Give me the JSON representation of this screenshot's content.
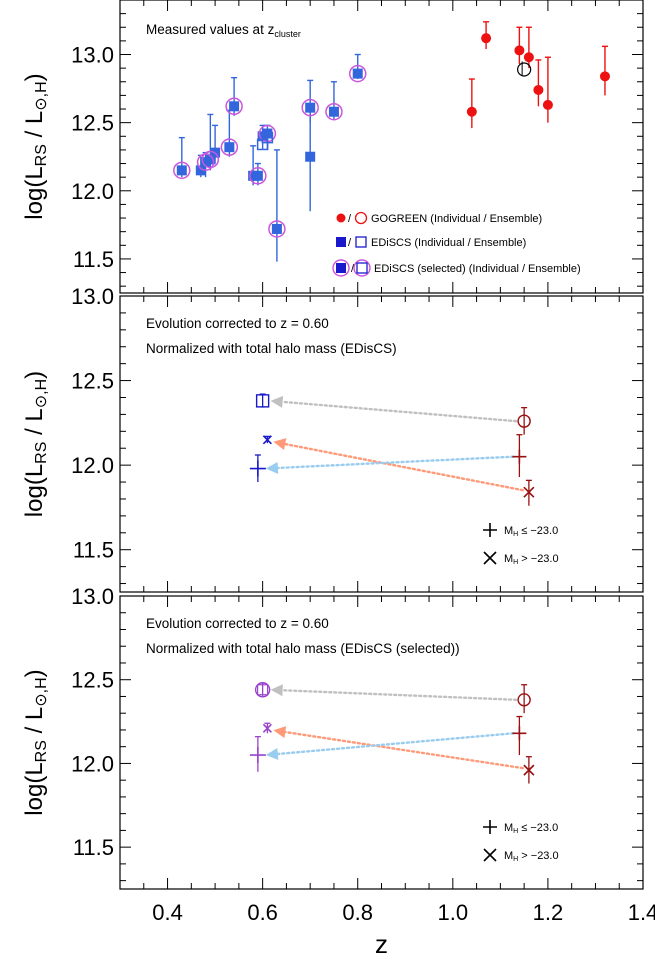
{
  "figure": {
    "x_axis": {
      "label": "z",
      "range": [
        0.3,
        1.4
      ],
      "ticks": [
        0.4,
        0.6,
        0.8,
        1.0,
        1.2,
        1.4
      ],
      "tick_labels": [
        "0.4",
        "0.6",
        "0.8",
        "1.0",
        "1.2",
        "1.4"
      ]
    },
    "y_axis_label": {
      "prefix": "log(L",
      "sub1": "RS",
      "mid": " / L",
      "sub2": "⊙,H",
      "suffix": ")"
    }
  },
  "colors": {
    "gogreen": "#ee1111",
    "ediscs": "#3366dd",
    "selected_ring": "#cc55dd",
    "dark_red": "#991111",
    "blue_marker": "#1a1acc",
    "violet_marker": "#9944cc",
    "arrow_gray": "#c0c0c0",
    "arrow_orange": "#ff9977",
    "arrow_blue": "#99ccee"
  },
  "chart_data": [
    {
      "type": "scatter",
      "panel": "top",
      "annotation": {
        "text": "Measured values at z",
        "sub": "cluster"
      },
      "ylim": [
        11.25,
        13.4
      ],
      "yticks": [
        11.5,
        12.0,
        12.5,
        13.0
      ],
      "ytick_labels": [
        "11.5",
        "12.0",
        "12.5",
        "13.0"
      ],
      "legend": [
        {
          "text": "GOGREEN (Individual / Ensemble)",
          "sep": "/"
        },
        {
          "text": "EDiSCS (Individual / Ensemble)",
          "sep": "/"
        },
        {
          "text": "EDiSCS (selected) (Individual / Ensemble)",
          "sep": "/"
        }
      ],
      "series": [
        {
          "name": "GOGREEN (Individual / Ensemble)",
          "individual": [
            {
              "x": 1.04,
              "y": 12.58,
              "lo": 12.46,
              "hi": 12.82
            },
            {
              "x": 1.07,
              "y": 13.12,
              "lo": 13.04,
              "hi": 13.24
            },
            {
              "x": 1.14,
              "y": 13.03,
              "lo": 12.93,
              "hi": 13.2
            },
            {
              "x": 1.16,
              "y": 12.98,
              "lo": 12.9,
              "hi": 13.2
            },
            {
              "x": 1.18,
              "y": 12.74,
              "lo": 12.62,
              "hi": 12.96
            },
            {
              "x": 1.2,
              "y": 12.63,
              "lo": 12.5,
              "hi": 12.98
            },
            {
              "x": 1.32,
              "y": 12.84,
              "lo": 12.7,
              "hi": 13.06
            }
          ],
          "ensemble": {
            "x": 1.15,
            "y": 12.89
          }
        },
        {
          "name": "EDiSCS (Individual / Ensemble)",
          "individual": [
            {
              "x": 0.43,
              "y": 12.15,
              "lo": 12.1,
              "hi": 12.39
            },
            {
              "x": 0.47,
              "y": 12.15,
              "lo": 12.1,
              "hi": 12.26
            },
            {
              "x": 0.48,
              "y": 12.21,
              "lo": 12.1,
              "hi": 12.28
            },
            {
              "x": 0.49,
              "y": 12.23,
              "lo": 12.15,
              "hi": 12.56
            },
            {
              "x": 0.5,
              "y": 12.28,
              "lo": 12.2,
              "hi": 12.48
            },
            {
              "x": 0.53,
              "y": 12.32,
              "lo": 12.25,
              "hi": 12.59
            },
            {
              "x": 0.54,
              "y": 12.62,
              "lo": 12.55,
              "hi": 12.83
            },
            {
              "x": 0.58,
              "y": 12.11,
              "lo": 12.04,
              "hi": 12.33
            },
            {
              "x": 0.59,
              "y": 12.11,
              "lo": 12.04,
              "hi": 12.2
            },
            {
              "x": 0.6,
              "y": 12.4,
              "lo": 12.3,
              "hi": 12.48
            },
            {
              "x": 0.61,
              "y": 12.42,
              "lo": 12.3,
              "hi": 12.48
            },
            {
              "x": 0.63,
              "y": 11.72,
              "lo": 11.48,
              "hi": 12.3
            },
            {
              "x": 0.7,
              "y": 12.61,
              "lo": 12.5,
              "hi": 12.81
            },
            {
              "x": 0.7,
              "y": 12.25,
              "lo": 11.85,
              "hi": 12.62
            },
            {
              "x": 0.75,
              "y": 12.58,
              "lo": 12.52,
              "hi": 12.8
            },
            {
              "x": 0.8,
              "y": 12.86,
              "lo": 12.82,
              "hi": 13.0
            }
          ],
          "ensemble": [
            {
              "x": 0.61,
              "y": 12.39
            },
            {
              "x": 0.6,
              "y": 12.34
            }
          ]
        },
        {
          "name": "EDiSCS (selected) (Individual / Ensemble)",
          "individual": [
            {
              "x": 0.43,
              "y": 12.15
            },
            {
              "x": 0.48,
              "y": 12.21
            },
            {
              "x": 0.49,
              "y": 12.23
            },
            {
              "x": 0.53,
              "y": 12.32
            },
            {
              "x": 0.54,
              "y": 12.62
            },
            {
              "x": 0.59,
              "y": 12.11
            },
            {
              "x": 0.61,
              "y": 12.42
            },
            {
              "x": 0.63,
              "y": 11.72
            },
            {
              "x": 0.7,
              "y": 12.61
            },
            {
              "x": 0.75,
              "y": 12.58
            },
            {
              "x": 0.8,
              "y": 12.86
            }
          ]
        }
      ]
    },
    {
      "type": "scatter",
      "panel": "middle",
      "annotation_lines": [
        "Evolution corrected to z = 0.60",
        "Normalized with total halo mass (EDisCS)"
      ],
      "ylim": [
        11.25,
        13.0
      ],
      "yticks": [
        11.5,
        12.0,
        12.5,
        13.0
      ],
      "ytick_labels": [
        "11.5",
        "12.0",
        "12.5",
        "13.0"
      ],
      "legend": [
        {
          "symbol": "plus",
          "label": "M",
          "sub": "H",
          "cond": " ≤ −23.0"
        },
        {
          "symbol": "cross",
          "label": "M",
          "sub": "H",
          "cond": " > −23.0"
        }
      ],
      "ediscs": {
        "ensemble": {
          "x": 0.6,
          "y": 12.38,
          "lo": 12.34,
          "hi": 12.42
        },
        "bright": {
          "x": 0.59,
          "y": 11.98,
          "lo": 11.9,
          "hi": 12.06
        },
        "faint": {
          "x": 0.61,
          "y": 12.15,
          "lo": 12.13,
          "hi": 12.17
        }
      },
      "gogreen": {
        "ensemble": {
          "x": 1.15,
          "y": 12.26,
          "lo": 12.18,
          "hi": 12.34
        },
        "bright": {
          "x": 1.14,
          "y": 12.05,
          "lo": 11.93,
          "hi": 12.18
        },
        "faint": {
          "x": 1.16,
          "y": 11.84,
          "lo": 11.76,
          "hi": 11.91
        }
      }
    },
    {
      "type": "scatter",
      "panel": "bottom",
      "annotation_lines": [
        "Evolution corrected to z = 0.60",
        "Normalized with total halo mass (EDisCS (selected))"
      ],
      "ylim": [
        11.25,
        13.0
      ],
      "yticks": [
        11.5,
        12.0,
        12.5,
        13.0
      ],
      "ytick_labels": [
        "11.5",
        "12.0",
        "12.5",
        "13.0"
      ],
      "legend": [
        {
          "symbol": "plus",
          "label": "M",
          "sub": "H",
          "cond": " ≤ −23.0"
        },
        {
          "symbol": "cross",
          "label": "M",
          "sub": "H",
          "cond": " > −23.0"
        }
      ],
      "ediscs": {
        "ensemble": {
          "x": 0.6,
          "y": 12.44,
          "lo": 12.4,
          "hi": 12.48
        },
        "bright": {
          "x": 0.59,
          "y": 12.05,
          "lo": 11.95,
          "hi": 12.16
        },
        "faint": {
          "x": 0.61,
          "y": 12.21,
          "lo": 12.18,
          "hi": 12.24
        }
      },
      "gogreen": {
        "ensemble": {
          "x": 1.15,
          "y": 12.38,
          "lo": 12.3,
          "hi": 12.47
        },
        "bright": {
          "x": 1.14,
          "y": 12.18,
          "lo": 12.05,
          "hi": 12.28
        },
        "faint": {
          "x": 1.16,
          "y": 11.96,
          "lo": 11.88,
          "hi": 12.04
        }
      }
    }
  ]
}
